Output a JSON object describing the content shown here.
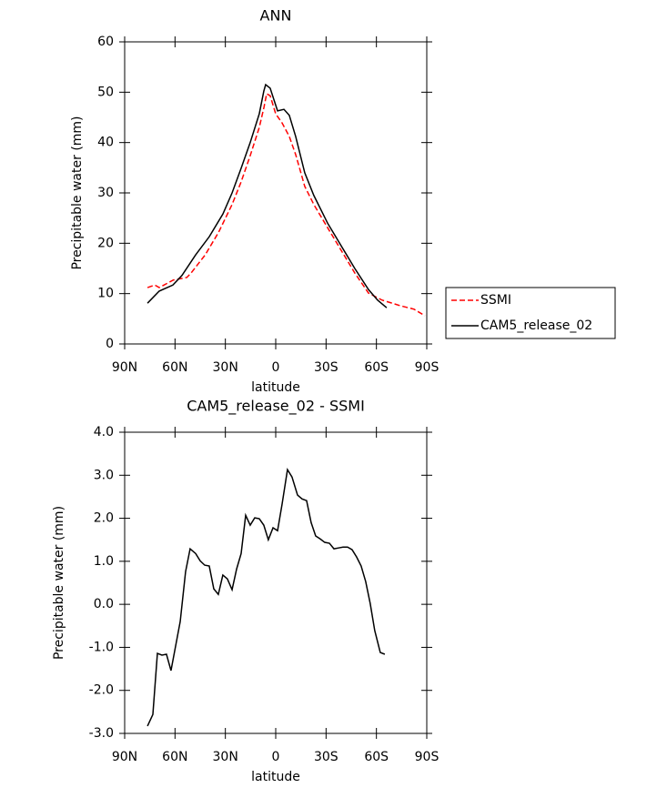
{
  "chart_data": [
    {
      "type": "line",
      "title": "ANN",
      "xlabel": "latitude",
      "ylabel": "Precipitable water (mm)",
      "xlim": [
        90,
        -90
      ],
      "xticks": [
        {
          "value": 90,
          "label": "90N"
        },
        {
          "value": 60,
          "label": "60N"
        },
        {
          "value": 30,
          "label": "30N"
        },
        0,
        {
          "value": -30,
          "label": "30S"
        },
        {
          "value": -60,
          "label": "60S"
        },
        {
          "value": -90,
          "label": "90S"
        }
      ],
      "ylim": [
        0,
        60
      ],
      "yticks": [
        0,
        10,
        20,
        30,
        40,
        50,
        60
      ],
      "legend": "right",
      "series": [
        {
          "name": "SSMI",
          "color": "#ff0000",
          "dash": true,
          "x": [
            76.4,
            72,
            69.4,
            61,
            53,
            50.4,
            42,
            34,
            26,
            20.6,
            15,
            9.8,
            7,
            5.4,
            3.3,
            0,
            -3.8,
            -8.1,
            -11.9,
            -17.3,
            -22.7,
            -30.9,
            -39,
            -47.1,
            -55.3,
            -63.4,
            -74.2,
            -82.4,
            -88.9
          ],
          "values": [
            11.2,
            11.7,
            11.2,
            12.7,
            13.2,
            14.1,
            17.7,
            22.2,
            27.7,
            32.2,
            37.6,
            43,
            47,
            49.7,
            49.3,
            45.7,
            43.9,
            41.2,
            37.6,
            31.3,
            27.7,
            23.1,
            18.6,
            14.1,
            10.1,
            8.7,
            7.6,
            6.9,
            5.6
          ]
        },
        {
          "name": "CAM5_release_02",
          "color": "#000000",
          "dash": false,
          "x": [
            76.4,
            69.4,
            61.3,
            55.9,
            47.7,
            39.6,
            31.5,
            26,
            20.6,
            15.2,
            9.8,
            7.1,
            6,
            3.3,
            -1.1,
            -4.9,
            -8.1,
            -11.9,
            -17.3,
            -22.7,
            -30.9,
            -39,
            -47.1,
            -55.3,
            -60.7,
            -66.1
          ],
          "values": [
            8.1,
            10.5,
            11.7,
            13.6,
            17.7,
            21.3,
            25.8,
            30,
            34.9,
            40,
            45.7,
            50.2,
            51.5,
            50.8,
            46.3,
            46.6,
            45.4,
            41.2,
            34,
            29.5,
            24,
            19.5,
            15,
            10.8,
            8.7,
            7.2
          ]
        }
      ]
    },
    {
      "type": "line",
      "title": "CAM5_release_02 - SSMI",
      "xlabel": "latitude",
      "ylabel": "Precipitable water (mm)",
      "xlim": [
        90,
        -90
      ],
      "xticks": [
        {
          "value": 90,
          "label": "90N"
        },
        {
          "value": 60,
          "label": "60N"
        },
        {
          "value": 30,
          "label": "30N"
        },
        0,
        {
          "value": -30,
          "label": "30S"
        },
        {
          "value": -60,
          "label": "60S"
        },
        {
          "value": -90,
          "label": "90S"
        }
      ],
      "ylim": [
        -3,
        4
      ],
      "yticks": [
        {
          "value": -3,
          "label": "-3.0"
        },
        {
          "value": -2,
          "label": "-2.0"
        },
        {
          "value": -1,
          "label": "-1.0"
        },
        {
          "value": 0,
          "label": "0.0"
        },
        {
          "value": 1,
          "label": "1.0"
        },
        {
          "value": 2,
          "label": "2.0"
        },
        {
          "value": 3,
          "label": "3.0"
        },
        {
          "value": 4,
          "label": "4.0"
        }
      ],
      "color": "#000000",
      "x": [
        76.4,
        73.2,
        70.5,
        67.8,
        65.1,
        62.4,
        56.9,
        53.7,
        51,
        47.7,
        45,
        42.3,
        39.6,
        36.9,
        34.2,
        31.5,
        28.8,
        26,
        23.3,
        20.6,
        17.9,
        15.2,
        12.5,
        9.8,
        7.1,
        4.4,
        1.6,
        -1.1,
        -3.8,
        -7,
        -9.7,
        -13,
        -15.7,
        -18.4,
        -21.1,
        -23.8,
        -26.5,
        -29.2,
        -32,
        -34.7,
        -37.4,
        -40.1,
        -42.8,
        -45.5,
        -48.2,
        -50.9,
        -53.6,
        -56.3,
        -59,
        -62.3,
        -65
      ],
      "values": [
        -2.83,
        -2.56,
        -1.14,
        -1.18,
        -1.16,
        -1.54,
        -0.4,
        0.76,
        1.29,
        1.18,
        1.01,
        0.91,
        0.89,
        0.36,
        0.23,
        0.68,
        0.59,
        0.34,
        0.82,
        1.18,
        2.07,
        1.84,
        2.01,
        1.99,
        1.84,
        1.5,
        1.78,
        1.71,
        2.33,
        3.13,
        2.96,
        2.54,
        2.45,
        2.41,
        1.9,
        1.59,
        1.52,
        1.44,
        1.42,
        1.29,
        1.31,
        1.33,
        1.33,
        1.27,
        1.1,
        0.89,
        0.53,
        0.02,
        -0.61,
        -1.12,
        -1.16
      ]
    }
  ]
}
